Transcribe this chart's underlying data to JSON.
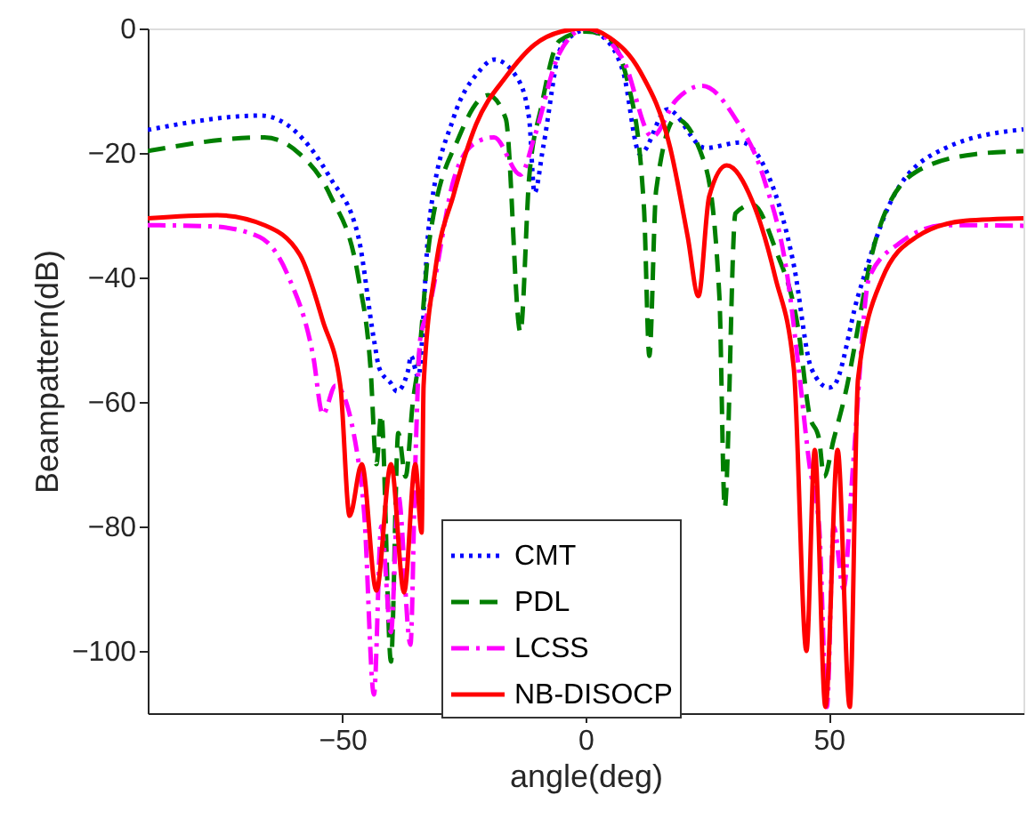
{
  "chart_data": {
    "type": "line",
    "xlabel": "angle(deg)",
    "ylabel": "Beampattern(dB)",
    "xlim": [
      -90,
      90
    ],
    "xticks": [
      -50,
      0,
      50
    ],
    "ylim": [
      -110,
      0
    ],
    "yticks": [
      -100,
      -80,
      -60,
      -40,
      -20,
      0
    ],
    "grid": false,
    "legend": "bottom",
    "marker": "none",
    "series": [
      {
        "name": "CMT",
        "color": "#0000ff",
        "line_style": "dotted",
        "x": [
          -90,
          -66.7,
          -52.5,
          -46.7,
          -43.5,
          -42.4,
          -40,
          -38.8,
          -36.5,
          -35.9,
          -34.4,
          -32.2,
          -27.2,
          -22,
          -18.8,
          -14,
          -11.6,
          -10.5,
          -8.7,
          -5,
          0,
          2.9,
          7.7,
          11.2,
          16.8,
          24.6,
          31.9,
          36.6,
          42.8,
          46.4,
          50,
          51,
          56,
          63.4,
          74,
          90
        ],
        "values": [
          -16.3,
          -14,
          -24,
          -33.5,
          -50,
          -54.6,
          -57,
          -58.3,
          -55,
          -52.6,
          -56,
          -31.6,
          -14.5,
          -7,
          -5,
          -8,
          -14.5,
          -26.4,
          -19,
          -3,
          -0.3,
          -1,
          -6.9,
          -20.2,
          -13,
          -19.2,
          -18.3,
          -22,
          -38,
          -54.6,
          -57.7,
          -57.4,
          -43,
          -26.8,
          -19.2,
          -16.2
        ]
      },
      {
        "name": "PDL",
        "color": "#007f00",
        "line_style": "dashed",
        "x": [
          -90,
          -66,
          -58.7,
          -52.5,
          -46.7,
          -44.2,
          -43,
          -42,
          -40,
          -38.5,
          -37,
          -35.5,
          -34.5,
          -32,
          -26,
          -20,
          -16.4,
          -13.4,
          -11.6,
          -9.1,
          -5.4,
          0,
          4,
          9,
          12,
          13.1,
          14.5,
          18.5,
          24.6,
          27.5,
          28.6,
          30.8,
          34.3,
          39,
          43.8,
          46,
          48,
          49,
          51,
          53,
          59.8,
          68,
          80,
          90
        ],
        "values": [
          -19.7,
          -17.5,
          -20.2,
          -26.8,
          -40,
          -54.6,
          -70,
          -62,
          -101.7,
          -65,
          -72,
          -60,
          -54.6,
          -33.5,
          -17.4,
          -10.7,
          -14.5,
          -48.8,
          -24,
          -12.6,
          -2,
          -0.5,
          -1.1,
          -9.7,
          -28.8,
          -52.6,
          -26,
          -14.5,
          -22,
          -43,
          -77,
          -29.7,
          -28.3,
          -35.4,
          -48.8,
          -62,
          -66,
          -72,
          -66,
          -60,
          -33.5,
          -23,
          -20.2,
          -19.7
        ]
      },
      {
        "name": "LCSS",
        "color": "#ff00ff",
        "line_style": "dashdot",
        "x": [
          -90,
          -76.8,
          -67,
          -61,
          -56,
          -54,
          -51.4,
          -47,
          -45.5,
          -43.5,
          -42,
          -40,
          -38.5,
          -36,
          -35,
          -34,
          -32.2,
          -27,
          -22.5,
          -18.8,
          -13.4,
          -10.5,
          -5.4,
          0,
          7.7,
          13.7,
          18.5,
          24,
          30.8,
          36.6,
          41.7,
          43.8,
          46,
          48,
          49.6,
          51,
          53,
          55,
          58.3,
          64.5,
          74,
          90
        ],
        "values": [
          -31.6,
          -31.8,
          -33.5,
          -40,
          -52.6,
          -62,
          -57.4,
          -68,
          -78,
          -107,
          -80,
          -97,
          -75,
          -99,
          -70,
          -50,
          -45,
          -24,
          -18.3,
          -17.5,
          -23.5,
          -17.4,
          -4,
          0,
          -5,
          -17.4,
          -11.6,
          -9.2,
          -14.5,
          -24,
          -41,
          -54.6,
          -70,
          -80,
          -109,
          -80,
          -90,
          -70,
          -40,
          -34.5,
          -31.6,
          -31.7
        ]
      },
      {
        "name": "NB-DISOCP",
        "color": "#ff0000",
        "line_style": "solid",
        "x": [
          -90,
          -75.7,
          -66,
          -58.7,
          -54,
          -50.4,
          -48.5,
          -46,
          -43,
          -40,
          -37.3,
          -35,
          -33.7,
          -33.3,
          -30.8,
          -27.2,
          -22.5,
          -16.4,
          -10.5,
          -5,
          0,
          5,
          11.2,
          17.4,
          21,
          23.2,
          25.4,
          29,
          34.3,
          39,
          42.8,
          45.4,
          47.1,
          49.3,
          51.8,
          54.3,
          56,
          60.9,
          68,
          78,
          90
        ],
        "values": [
          -30.5,
          -30,
          -31.6,
          -36.4,
          -47,
          -57.4,
          -78.3,
          -70,
          -90.3,
          -70,
          -90.6,
          -70,
          -81,
          -57.4,
          -38.3,
          -26.9,
          -15.4,
          -7.8,
          -2.6,
          -0.5,
          0,
          -1.5,
          -6.9,
          -19.2,
          -33.5,
          -43,
          -27,
          -22,
          -27.8,
          -40,
          -54.6,
          -100,
          -67.7,
          -109,
          -67.7,
          -109,
          -56.3,
          -40.3,
          -33.5,
          -30.9,
          -30.5
        ]
      }
    ]
  }
}
